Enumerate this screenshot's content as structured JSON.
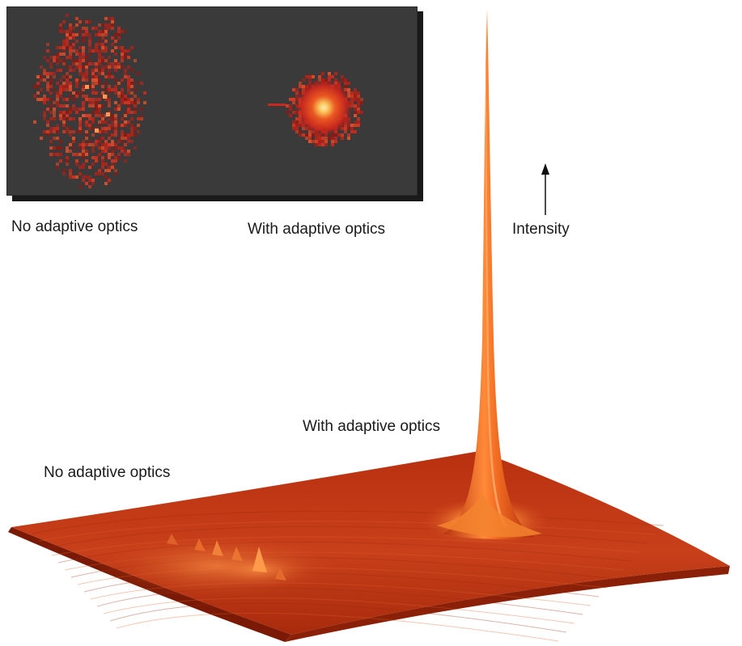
{
  "inset": {
    "left_caption": "No adaptive optics",
    "right_caption": "With adaptive optics"
  },
  "surface": {
    "axis_label": "Intensity",
    "peak_label": "With adaptive optics",
    "diffuse_label": "No adaptive optics"
  },
  "colors": {
    "inset_background": "#3a3a3a",
    "speckle_red": "#c8281e",
    "core_yellow": "#ffe9a0",
    "surface_base": "#c23a14",
    "surface_highlight": "#ff9a40"
  }
}
